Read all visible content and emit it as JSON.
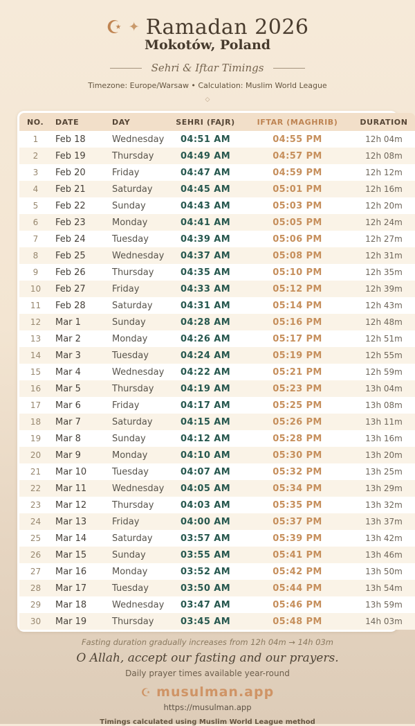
{
  "header": {
    "crescent_icon": "☪",
    "sparkle_icon": "✦",
    "title": "Ramadan 2026",
    "location": "Mokotów, Poland",
    "subtitle": "Sehri & Iftar Timings",
    "meta": "Timezone: Europe/Warsaw • Calculation: Muslim World League",
    "divider_diamond": "◇"
  },
  "table": {
    "columns": [
      "NO.",
      "DATE",
      "DAY",
      "SEHRI (FAJR)",
      "IFTAR (MAGHRIB)",
      "DURATION"
    ],
    "rows": [
      {
        "no": "1",
        "date": "Feb 18",
        "day": "Wednesday",
        "sehri": "04:51 AM",
        "iftar": "04:55 PM",
        "duration": "12h 04m"
      },
      {
        "no": "2",
        "date": "Feb 19",
        "day": "Thursday",
        "sehri": "04:49 AM",
        "iftar": "04:57 PM",
        "duration": "12h 08m"
      },
      {
        "no": "3",
        "date": "Feb 20",
        "day": "Friday",
        "sehri": "04:47 AM",
        "iftar": "04:59 PM",
        "duration": "12h 12m"
      },
      {
        "no": "4",
        "date": "Feb 21",
        "day": "Saturday",
        "sehri": "04:45 AM",
        "iftar": "05:01 PM",
        "duration": "12h 16m"
      },
      {
        "no": "5",
        "date": "Feb 22",
        "day": "Sunday",
        "sehri": "04:43 AM",
        "iftar": "05:03 PM",
        "duration": "12h 20m"
      },
      {
        "no": "6",
        "date": "Feb 23",
        "day": "Monday",
        "sehri": "04:41 AM",
        "iftar": "05:05 PM",
        "duration": "12h 24m"
      },
      {
        "no": "7",
        "date": "Feb 24",
        "day": "Tuesday",
        "sehri": "04:39 AM",
        "iftar": "05:06 PM",
        "duration": "12h 27m"
      },
      {
        "no": "8",
        "date": "Feb 25",
        "day": "Wednesday",
        "sehri": "04:37 AM",
        "iftar": "05:08 PM",
        "duration": "12h 31m"
      },
      {
        "no": "9",
        "date": "Feb 26",
        "day": "Thursday",
        "sehri": "04:35 AM",
        "iftar": "05:10 PM",
        "duration": "12h 35m"
      },
      {
        "no": "10",
        "date": "Feb 27",
        "day": "Friday",
        "sehri": "04:33 AM",
        "iftar": "05:12 PM",
        "duration": "12h 39m"
      },
      {
        "no": "11",
        "date": "Feb 28",
        "day": "Saturday",
        "sehri": "04:31 AM",
        "iftar": "05:14 PM",
        "duration": "12h 43m"
      },
      {
        "no": "12",
        "date": "Mar 1",
        "day": "Sunday",
        "sehri": "04:28 AM",
        "iftar": "05:16 PM",
        "duration": "12h 48m"
      },
      {
        "no": "13",
        "date": "Mar 2",
        "day": "Monday",
        "sehri": "04:26 AM",
        "iftar": "05:17 PM",
        "duration": "12h 51m"
      },
      {
        "no": "14",
        "date": "Mar 3",
        "day": "Tuesday",
        "sehri": "04:24 AM",
        "iftar": "05:19 PM",
        "duration": "12h 55m"
      },
      {
        "no": "15",
        "date": "Mar 4",
        "day": "Wednesday",
        "sehri": "04:22 AM",
        "iftar": "05:21 PM",
        "duration": "12h 59m"
      },
      {
        "no": "16",
        "date": "Mar 5",
        "day": "Thursday",
        "sehri": "04:19 AM",
        "iftar": "05:23 PM",
        "duration": "13h 04m"
      },
      {
        "no": "17",
        "date": "Mar 6",
        "day": "Friday",
        "sehri": "04:17 AM",
        "iftar": "05:25 PM",
        "duration": "13h 08m"
      },
      {
        "no": "18",
        "date": "Mar 7",
        "day": "Saturday",
        "sehri": "04:15 AM",
        "iftar": "05:26 PM",
        "duration": "13h 11m"
      },
      {
        "no": "19",
        "date": "Mar 8",
        "day": "Sunday",
        "sehri": "04:12 AM",
        "iftar": "05:28 PM",
        "duration": "13h 16m"
      },
      {
        "no": "20",
        "date": "Mar 9",
        "day": "Monday",
        "sehri": "04:10 AM",
        "iftar": "05:30 PM",
        "duration": "13h 20m"
      },
      {
        "no": "21",
        "date": "Mar 10",
        "day": "Tuesday",
        "sehri": "04:07 AM",
        "iftar": "05:32 PM",
        "duration": "13h 25m"
      },
      {
        "no": "22",
        "date": "Mar 11",
        "day": "Wednesday",
        "sehri": "04:05 AM",
        "iftar": "05:34 PM",
        "duration": "13h 29m"
      },
      {
        "no": "23",
        "date": "Mar 12",
        "day": "Thursday",
        "sehri": "04:03 AM",
        "iftar": "05:35 PM",
        "duration": "13h 32m"
      },
      {
        "no": "24",
        "date": "Mar 13",
        "day": "Friday",
        "sehri": "04:00 AM",
        "iftar": "05:37 PM",
        "duration": "13h 37m"
      },
      {
        "no": "25",
        "date": "Mar 14",
        "day": "Saturday",
        "sehri": "03:57 AM",
        "iftar": "05:39 PM",
        "duration": "13h 42m"
      },
      {
        "no": "26",
        "date": "Mar 15",
        "day": "Sunday",
        "sehri": "03:55 AM",
        "iftar": "05:41 PM",
        "duration": "13h 46m"
      },
      {
        "no": "27",
        "date": "Mar 16",
        "day": "Monday",
        "sehri": "03:52 AM",
        "iftar": "05:42 PM",
        "duration": "13h 50m"
      },
      {
        "no": "28",
        "date": "Mar 17",
        "day": "Tuesday",
        "sehri": "03:50 AM",
        "iftar": "05:44 PM",
        "duration": "13h 54m"
      },
      {
        "no": "29",
        "date": "Mar 18",
        "day": "Wednesday",
        "sehri": "03:47 AM",
        "iftar": "05:46 PM",
        "duration": "13h 59m"
      },
      {
        "no": "30",
        "date": "Mar 19",
        "day": "Thursday",
        "sehri": "03:45 AM",
        "iftar": "05:48 PM",
        "duration": "14h 03m"
      }
    ]
  },
  "footer": {
    "trend_note": "Fasting duration gradually increases from 12h 04m → 14h 03m",
    "dua": "O Allah, accept our fasting and our prayers.",
    "availability": "Daily prayer times available year-round",
    "brand_icon": "☪",
    "brand_name": "musulman.app",
    "url": "https://musulman.app",
    "method_note": "Timings calculated using Muslim World League method"
  },
  "colors": {
    "sehri_time": "#27584f",
    "iftar_time": "#c68f5c",
    "accent_tan": "#c08552",
    "table_header_bg": "#f2dfc9",
    "background_top": "#f6ead9",
    "background_bottom": "#ddccb8"
  }
}
